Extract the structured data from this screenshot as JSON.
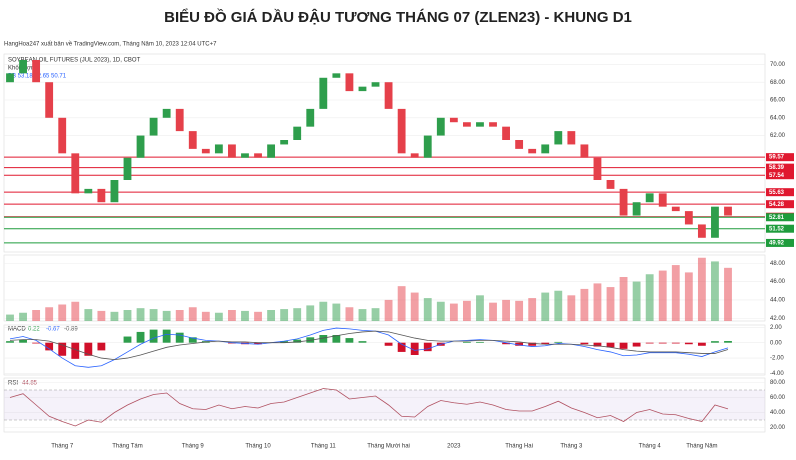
{
  "chart_data": {
    "type": "candlestick",
    "title": "BIỂU ĐỒ GIÁ DẦU ĐẬU TƯƠNG THÁNG 07 (ZLEN23) - KHUNG D1",
    "subtitle": "HangHoa247 xuất bản về TradingView.com, Tháng Năm 10, 2023 12:04 UTC+7",
    "symbol_label": "SOYBEAN OIL FUTURES (JUL 2023), 1D, CBOT",
    "volume_label": "Khối lượng",
    "bb_label": "BB 53.18 52.65 50.71",
    "categories": [
      null,
      null,
      null,
      null,
      "Tháng 7",
      null,
      null,
      null,
      null,
      "Tháng Tám",
      null,
      null,
      null,
      null,
      "Tháng 9",
      null,
      null,
      null,
      null,
      "Tháng 10",
      null,
      null,
      null,
      null,
      "Tháng 11",
      null,
      null,
      null,
      null,
      "Tháng Mười hai",
      null,
      null,
      null,
      null,
      "2023",
      null,
      null,
      null,
      null,
      "Tháng Hai",
      null,
      null,
      null,
      "Tháng 3",
      null,
      null,
      null,
      null,
      null,
      "Tháng 4",
      null,
      null,
      null,
      "Tháng Năm",
      null,
      null
    ],
    "open": [
      68,
      69,
      70.5,
      68,
      64,
      60,
      55.5,
      56,
      54.5,
      57,
      59.5,
      62,
      64,
      65,
      62.5,
      60.5,
      60,
      61,
      59.5,
      60,
      59.5,
      61,
      61.5,
      63,
      65,
      68.5,
      69,
      67,
      67.5,
      68,
      65,
      60,
      59.5,
      62,
      64,
      63.5,
      63,
      63.5,
      63,
      61.5,
      60.5,
      60,
      61,
      62.5,
      61,
      59.5,
      57,
      56,
      53,
      54.5,
      55.5,
      54,
      53.5,
      52,
      50.5,
      54
    ],
    "close": [
      69,
      70.5,
      68,
      64,
      60,
      55.5,
      56,
      54.5,
      57,
      59.5,
      62,
      64,
      65,
      62.5,
      60.5,
      60,
      61,
      59.5,
      60,
      59.5,
      61,
      61.5,
      63,
      65,
      68.5,
      69,
      67,
      67.5,
      68,
      65,
      60,
      59.5,
      62,
      64,
      63.5,
      63,
      63.5,
      63,
      61.5,
      60.5,
      60,
      61,
      62.5,
      61,
      59.5,
      57,
      56,
      53,
      54.5,
      55.5,
      54,
      53.5,
      52,
      50.5,
      54,
      53
    ],
    "up_color": "#2e9e4c",
    "down_color": "#e5404a",
    "ylim": [
      48.9,
      70.5
    ],
    "yticks": [
      {
        "value": 70,
        "label": "70.00"
      },
      {
        "value": 68,
        "label": "68.00"
      },
      {
        "value": 66,
        "label": "66.00"
      },
      {
        "value": 64,
        "label": "64.00"
      },
      {
        "value": 62,
        "label": "62.00"
      }
    ],
    "levels": [
      {
        "value": 59.57,
        "color": "#e0182f"
      },
      {
        "value": 58.39,
        "color": "#e0182f"
      },
      {
        "value": 57.54,
        "color": "#e0182f"
      },
      {
        "value": 55.63,
        "color": "#e0182f"
      },
      {
        "value": 54.28,
        "color": "#e0182f"
      },
      {
        "value": 52.87,
        "color": "#e0182f"
      },
      {
        "value": 52.81,
        "color": "#1e9c3c"
      },
      {
        "value": 51.52,
        "color": "#1e9c3c"
      },
      {
        "value": 49.92,
        "color": "#1e9c3c"
      }
    ],
    "volume": {
      "values": [
        42.4,
        42.6,
        42.9,
        43.2,
        43.5,
        43.8,
        43.0,
        42.8,
        42.7,
        42.9,
        43.1,
        43.0,
        42.8,
        42.9,
        43.2,
        42.7,
        42.6,
        42.9,
        42.8,
        42.7,
        42.9,
        43.0,
        43.1,
        43.4,
        43.8,
        43.6,
        43.2,
        43.0,
        43.1,
        44.0,
        45.5,
        44.8,
        44.2,
        43.8,
        43.6,
        43.9,
        44.5,
        43.7,
        44.0,
        43.9,
        44.2,
        44.8,
        45.0,
        44.5,
        45.2,
        45.8,
        45.4,
        46.5,
        46.0,
        46.8,
        47.2,
        47.8,
        47.0,
        48.6,
        48.2,
        47.5
      ],
      "ylim": [
        41.7,
        48.9
      ],
      "yticks": [
        {
          "value": 48,
          "label": "48.00"
        },
        {
          "value": 46,
          "label": "46.00"
        },
        {
          "value": 44,
          "label": "44.00"
        },
        {
          "value": 42,
          "label": "42.00"
        }
      ]
    },
    "macd": {
      "label": "MACD",
      "readout": [
        "0.22",
        "-0.67",
        "-0.89"
      ],
      "hist": [
        0.2,
        0.4,
        -0.1,
        -1.0,
        -1.7,
        -2.1,
        -1.7,
        -1.0,
        0,
        0.8,
        1.4,
        1.7,
        1.7,
        1.3,
        0.7,
        0.2,
        0,
        -0.1,
        -0.2,
        -0.2,
        0,
        0.2,
        0.4,
        0.7,
        1.0,
        1.0,
        0.6,
        0.2,
        0,
        -0.4,
        -1.2,
        -1.6,
        -1.1,
        -0.4,
        0,
        0.1,
        0.1,
        0,
        -0.2,
        -0.4,
        -0.4,
        -0.2,
        0.1,
        0,
        -0.2,
        -0.5,
        -0.6,
        -0.8,
        -0.5,
        -0.1,
        -0.1,
        -0.1,
        -0.2,
        -0.4,
        0.2,
        0.22
      ],
      "macd": [
        0.5,
        0.8,
        0.3,
        -0.8,
        -2,
        -3,
        -3.2,
        -3.0,
        -2.2,
        -1.2,
        -0.2,
        0.6,
        1.1,
        1.0,
        0.6,
        0.3,
        0.2,
        0,
        -0.1,
        -0.2,
        0,
        0.2,
        0.5,
        1.0,
        1.6,
        1.9,
        1.8,
        1.6,
        1.5,
        1.0,
        -0.2,
        -1.0,
        -0.8,
        -0.2,
        0.2,
        0.3,
        0.4,
        0.3,
        0,
        -0.3,
        -0.5,
        -0.4,
        -0.1,
        -0.2,
        -0.5,
        -0.9,
        -1.2,
        -1.7,
        -1.6,
        -1.3,
        -1.3,
        -1.3,
        -1.5,
        -1.8,
        -1.2,
        -0.67
      ],
      "signal": [
        0.3,
        0.4,
        0.4,
        0.2,
        -0.3,
        -0.9,
        -1.5,
        -2.0,
        -2.2,
        -2.0,
        -1.6,
        -1.1,
        -0.6,
        -0.3,
        -0.1,
        0.1,
        0.2,
        0.1,
        0.1,
        0,
        0,
        0,
        0.1,
        0.3,
        0.6,
        0.9,
        1.2,
        1.4,
        1.5,
        1.4,
        1.0,
        0.6,
        0.3,
        0.2,
        0.2,
        0.2,
        0.3,
        0.3,
        0.2,
        0.1,
        -0.1,
        -0.2,
        -0.2,
        -0.2,
        -0.3,
        -0.4,
        -0.6,
        -0.9,
        -1.1,
        -1.2,
        -1.2,
        -1.2,
        -1.3,
        -1.4,
        -1.4,
        -0.89
      ],
      "macd_color": "#2962ff",
      "signal_color": "#555555",
      "ylim": [
        -4.2,
        2.3
      ],
      "yticks": [
        {
          "value": 2,
          "label": "2.00"
        },
        {
          "value": 0,
          "label": "0.00"
        },
        {
          "value": -2,
          "label": "-2.00"
        },
        {
          "value": -4,
          "label": "-4.00"
        }
      ]
    },
    "rsi": {
      "label": "RSI",
      "readout": "44.85",
      "values": [
        60,
        65,
        50,
        35,
        28,
        22,
        30,
        27,
        40,
        50,
        58,
        64,
        66,
        52,
        45,
        44,
        50,
        45,
        48,
        46,
        52,
        54,
        60,
        66,
        72,
        70,
        58,
        60,
        62,
        50,
        35,
        34,
        48,
        56,
        53,
        51,
        54,
        50,
        44,
        42,
        42,
        48,
        55,
        46,
        40,
        33,
        36,
        28,
        40,
        44,
        38,
        37,
        32,
        28,
        50,
        44.85
      ],
      "color": "#b05060",
      "band": [
        30,
        70
      ],
      "ylim": [
        14,
        86
      ],
      "yticks": [
        {
          "value": 80,
          "label": "80.00"
        },
        {
          "value": 60,
          "label": "60.00"
        },
        {
          "value": 40,
          "label": "40.00"
        },
        {
          "value": 20,
          "label": "20.00"
        }
      ]
    }
  }
}
